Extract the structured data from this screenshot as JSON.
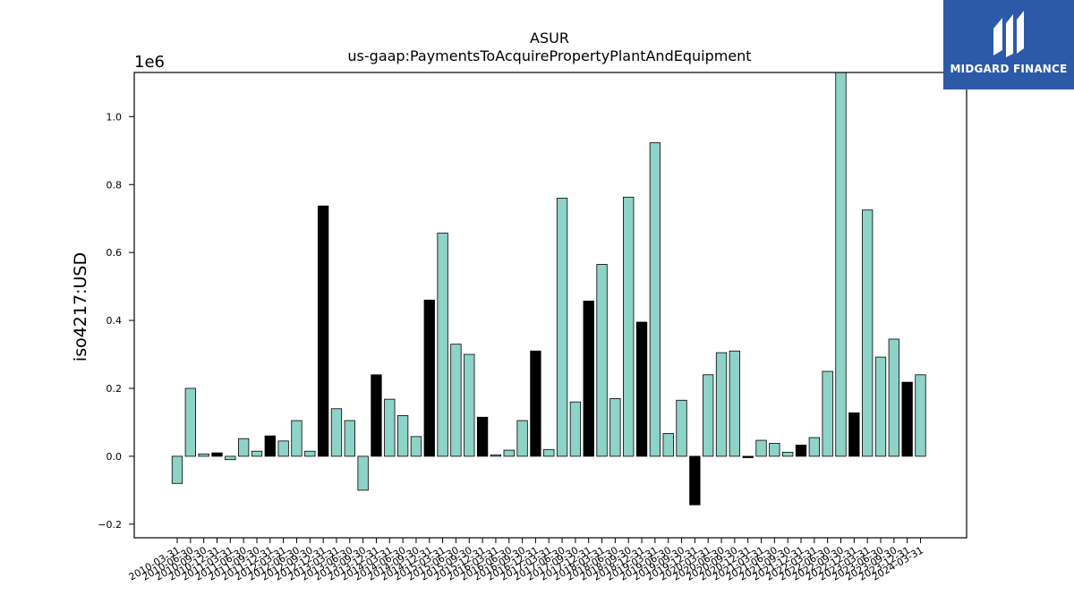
{
  "chart_data": {
    "type": "bar",
    "title": "ASUR",
    "subtitle": "us-gaap:PaymentsToAcquirePropertyPlantAndEquipment",
    "ylabel": "iso4217:USD",
    "xlabel": "",
    "yscale_label": "1e6",
    "ylim": [
      -0.24,
      1.13
    ],
    "yticks": [
      -0.2,
      0.0,
      0.2,
      0.4,
      0.6,
      0.8,
      1.0
    ],
    "ytick_labels": [
      "−0.2",
      "0.0",
      "0.2",
      "0.4",
      "0.6",
      "0.8",
      "1.0"
    ],
    "grid": false,
    "legend": "none",
    "colors": {
      "normal": "#8dd3c7",
      "highlight": "#000000",
      "edge": "#000000"
    },
    "categories": [
      "2010-03-31",
      "2010-06-30",
      "2010-09-30",
      "2010-12-31",
      "2011-03-31",
      "2011-06-30",
      "2011-09-30",
      "2011-12-31",
      "2012-03-31",
      "2012-06-30",
      "2012-09-30",
      "2012-12-31",
      "2013-03-31",
      "2013-06-30",
      "2013-09-30",
      "2013-12-31",
      "2014-03-31",
      "2014-06-30",
      "2014-09-30",
      "2014-12-31",
      "2015-03-31",
      "2015-06-30",
      "2015-09-30",
      "2015-12-31",
      "2016-03-31",
      "2016-06-30",
      "2016-09-30",
      "2016-12-31",
      "2017-03-31",
      "2017-06-30",
      "2017-09-30",
      "2017-12-31",
      "2018-03-31",
      "2018-06-30",
      "2018-09-30",
      "2018-12-31",
      "2019-03-31",
      "2019-06-30",
      "2019-09-30",
      "2019-12-31",
      "2020-03-31",
      "2020-06-30",
      "2020-09-30",
      "2020-12-31",
      "2021-03-31",
      "2021-06-30",
      "2021-09-30",
      "2021-12-31",
      "2022-03-31",
      "2022-06-30",
      "2022-09-30",
      "2022-12-31",
      "2023-03-31",
      "2023-06-30",
      "2023-09-30",
      "2023-12-31",
      "2024-03-31"
    ],
    "values": [
      -0.08,
      0.2,
      0.007,
      0.01,
      -0.01,
      0.052,
      0.015,
      0.06,
      0.045,
      0.105,
      0.015,
      0.737,
      0.14,
      0.105,
      -0.1,
      0.24,
      0.168,
      0.12,
      0.058,
      0.46,
      0.657,
      0.33,
      0.3,
      0.115,
      0.004,
      0.018,
      0.105,
      0.31,
      0.02,
      0.76,
      0.16,
      0.457,
      0.565,
      0.17,
      0.763,
      0.395,
      0.923,
      0.067,
      0.165,
      -0.143,
      0.24,
      0.305,
      0.31,
      -0.004,
      0.047,
      0.038,
      0.012,
      0.033,
      0.055,
      0.25,
      1.15,
      0.128,
      0.725,
      0.292,
      0.345,
      0.218,
      0.24
    ],
    "highlight": [
      false,
      false,
      false,
      true,
      false,
      false,
      false,
      true,
      false,
      false,
      false,
      true,
      false,
      false,
      false,
      true,
      false,
      false,
      false,
      true,
      false,
      false,
      false,
      true,
      false,
      false,
      false,
      true,
      false,
      false,
      false,
      true,
      false,
      false,
      false,
      true,
      false,
      false,
      false,
      true,
      false,
      false,
      false,
      true,
      false,
      false,
      false,
      true,
      false,
      false,
      false,
      true,
      false,
      false,
      false,
      true,
      false
    ]
  },
  "logo": {
    "text": "MIDGARD FINANCE",
    "icon": "midgard-logo-icon"
  }
}
